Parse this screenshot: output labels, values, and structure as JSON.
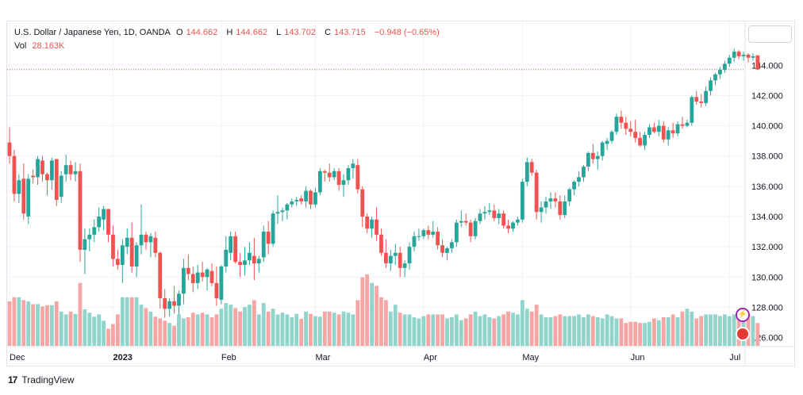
{
  "legend": {
    "symbol_name": "U.S. Dollar / Japanese Yen, 1D, OANDA",
    "o_label": "O",
    "o_value": "144.662",
    "h_label": "H",
    "h_value": "144.662",
    "l_label": "L",
    "l_value": "143.702",
    "c_label": "C",
    "c_value": "143.715",
    "change": "−0.948 (−0.65%)",
    "vol_label": "Vol",
    "vol_value": "28.163K"
  },
  "brand": {
    "name": "TradingView",
    "logo": "17"
  },
  "colors": {
    "up": "#26a69a",
    "down": "#ef5350",
    "vol_up": "#90d4cc",
    "vol_down": "#f5a5a3",
    "last_price_line": "#ef5350",
    "grid": "#f0f3fa",
    "axis_text": "#131722"
  },
  "icons": {
    "dividend": "dividend-event-icon",
    "flag": "us-flag-event-icon"
  },
  "chart_data": {
    "type": "candlestick",
    "title": "U.S. Dollar / Japanese Yen, 1D, OANDA",
    "ylim": [
      125.4,
      146.9
    ],
    "y_ticks": [
      "144.000",
      "142.000",
      "140.000",
      "138.000",
      "136.000",
      "134.000",
      "132.000",
      "130.000",
      "128.000",
      "126.000"
    ],
    "x_ticks": [
      {
        "label": "Dec",
        "index": 0
      },
      {
        "label": "2023",
        "index": 22
      },
      {
        "label": "Feb",
        "index": 45
      },
      {
        "label": "Mar",
        "index": 65
      },
      {
        "label": "Apr",
        "index": 88
      },
      {
        "label": "May",
        "index": 109
      },
      {
        "label": "Jun",
        "index": 132
      },
      {
        "label": "Jul",
        "index": 153
      }
    ],
    "last_price": 143.715,
    "grid": true,
    "candles": [
      [
        138.9,
        139.9,
        137.5,
        138.0,
        0.78
      ],
      [
        138.0,
        138.4,
        135.0,
        135.5,
        0.85
      ],
      [
        135.5,
        136.8,
        134.9,
        136.4,
        0.85
      ],
      [
        136.5,
        137.5,
        133.8,
        134.2,
        0.8
      ],
      [
        134.0,
        136.8,
        133.5,
        136.5,
        0.78
      ],
      [
        136.7,
        137.1,
        136.2,
        136.6,
        0.73
      ],
      [
        136.6,
        138.0,
        136.1,
        137.8,
        0.73
      ],
      [
        137.7,
        138.0,
        136.3,
        136.8,
        0.69
      ],
      [
        136.8,
        136.9,
        135.4,
        136.4,
        0.71
      ],
      [
        136.4,
        137.9,
        135.8,
        137.7,
        0.71
      ],
      [
        137.8,
        137.8,
        134.7,
        135.1,
        0.78
      ],
      [
        135.3,
        137.0,
        134.9,
        136.7,
        0.6
      ],
      [
        136.8,
        138.1,
        136.3,
        137.4,
        0.55
      ],
      [
        137.4,
        137.7,
        136.4,
        136.8,
        0.6
      ],
      [
        136.8,
        137.6,
        136.3,
        137.0,
        0.56
      ],
      [
        137.0,
        137.5,
        131.0,
        131.8,
        1.1
      ],
      [
        131.8,
        133.2,
        130.2,
        132.5,
        0.64
      ],
      [
        132.5,
        133.2,
        131.7,
        132.8,
        0.58
      ],
      [
        132.8,
        133.8,
        132.3,
        133.3,
        0.51
      ],
      [
        133.3,
        134.6,
        133.0,
        134.0,
        0.55
      ],
      [
        133.8,
        134.7,
        133.1,
        134.5,
        0.44
      ],
      [
        134.5,
        134.5,
        132.3,
        132.8,
        0.3
      ],
      [
        132.8,
        133.4,
        130.7,
        131.2,
        0.38
      ],
      [
        131.2,
        131.8,
        130.5,
        130.8,
        0.55
      ],
      [
        130.8,
        132.5,
        129.6,
        132.1,
        0.85
      ],
      [
        132.0,
        133.2,
        131.5,
        132.6,
        0.85
      ],
      [
        132.6,
        133.6,
        130.3,
        130.7,
        0.85
      ],
      [
        130.7,
        132.3,
        130.0,
        132.1,
        0.85
      ],
      [
        132.1,
        134.8,
        131.5,
        132.8,
        0.72
      ],
      [
        132.8,
        133.0,
        131.8,
        132.3,
        0.66
      ],
      [
        132.3,
        132.9,
        131.3,
        132.7,
        0.6
      ],
      [
        132.6,
        133.0,
        131.3,
        131.6,
        0.51
      ],
      [
        131.6,
        131.7,
        127.9,
        128.6,
        0.48
      ],
      [
        128.6,
        129.2,
        127.3,
        127.9,
        0.44
      ],
      [
        127.9,
        128.6,
        127.4,
        128.4,
        0.4
      ],
      [
        128.4,
        129.4,
        127.6,
        128.1,
        0.35
      ],
      [
        128.1,
        129.1,
        127.5,
        128.9,
        0.55
      ],
      [
        128.9,
        131.2,
        128.2,
        130.6,
        0.48
      ],
      [
        130.6,
        131.5,
        129.8,
        130.2,
        0.5
      ],
      [
        130.2,
        130.7,
        129.0,
        129.6,
        0.58
      ],
      [
        129.6,
        130.8,
        129.2,
        130.3,
        0.55
      ],
      [
        130.3,
        131.0,
        129.7,
        130.0,
        0.58
      ],
      [
        130.0,
        130.6,
        129.1,
        130.5,
        0.55
      ],
      [
        130.4,
        130.9,
        129.4,
        129.6,
        0.5
      ],
      [
        129.6,
        130.7,
        128.1,
        128.6,
        0.55
      ],
      [
        128.5,
        130.8,
        128.2,
        130.7,
        0.65
      ],
      [
        130.7,
        132.7,
        130.3,
        131.8,
        0.75
      ],
      [
        131.6,
        133.0,
        131.1,
        132.7,
        0.72
      ],
      [
        132.7,
        133.0,
        130.9,
        131.0,
        0.66
      ],
      [
        131.0,
        131.6,
        130.0,
        130.8,
        0.6
      ],
      [
        130.8,
        132.0,
        130.1,
        131.1,
        0.68
      ],
      [
        131.1,
        132.3,
        130.8,
        131.6,
        0.72
      ],
      [
        131.4,
        132.6,
        129.8,
        130.9,
        0.8
      ],
      [
        130.9,
        131.4,
        130.3,
        131.2,
        0.55
      ],
      [
        131.3,
        133.4,
        131.0,
        133.0,
        0.75
      ],
      [
        133.0,
        133.7,
        131.5,
        132.2,
        0.6
      ],
      [
        132.2,
        134.4,
        132.0,
        134.2,
        0.65
      ],
      [
        134.2,
        135.4,
        133.5,
        134.3,
        0.55
      ],
      [
        134.3,
        134.6,
        133.7,
        134.4,
        0.58
      ],
      [
        134.4,
        134.9,
        133.8,
        134.8,
        0.55
      ],
      [
        134.8,
        135.2,
        134.6,
        135.0,
        0.5
      ],
      [
        135.0,
        135.3,
        134.7,
        135.1,
        0.56
      ],
      [
        135.2,
        135.4,
        134.8,
        135.0,
        0.47
      ],
      [
        135.0,
        136.0,
        134.6,
        135.7,
        0.6
      ],
      [
        135.7,
        135.8,
        134.5,
        134.8,
        0.56
      ],
      [
        134.8,
        135.9,
        134.6,
        135.6,
        0.52
      ],
      [
        135.6,
        137.2,
        135.4,
        137.0,
        0.51
      ],
      [
        137.0,
        137.1,
        136.3,
        136.9,
        0.6
      ],
      [
        136.9,
        137.5,
        136.3,
        136.6,
        0.6
      ],
      [
        136.6,
        137.2,
        136.4,
        137.0,
        0.58
      ],
      [
        137.0,
        137.2,
        135.7,
        136.1,
        0.55
      ],
      [
        136.1,
        136.8,
        135.3,
        136.4,
        0.6
      ],
      [
        136.4,
        137.4,
        136.1,
        137.2,
        0.58
      ],
      [
        137.2,
        137.8,
        136.5,
        137.5,
        0.55
      ],
      [
        137.4,
        137.8,
        135.5,
        135.8,
        0.8
      ],
      [
        135.8,
        136.0,
        133.3,
        134.0,
        1.2
      ],
      [
        134.0,
        134.2,
        132.9,
        133.2,
        1.25
      ],
      [
        133.2,
        134.0,
        132.6,
        133.8,
        1.1
      ],
      [
        133.8,
        134.6,
        132.4,
        132.8,
        1.05
      ],
      [
        132.8,
        133.2,
        131.4,
        131.6,
        0.85
      ],
      [
        131.6,
        132.5,
        130.6,
        130.9,
        0.8
      ],
      [
        130.9,
        131.8,
        130.4,
        131.4,
        0.6
      ],
      [
        131.4,
        132.2,
        130.8,
        131.6,
        0.72
      ],
      [
        131.6,
        132.0,
        130.0,
        130.6,
        0.58
      ],
      [
        130.6,
        131.1,
        130.0,
        130.9,
        0.55
      ],
      [
        130.9,
        132.3,
        130.5,
        132.0,
        0.55
      ],
      [
        132.0,
        133.0,
        131.7,
        132.7,
        0.5
      ],
      [
        132.7,
        133.2,
        132.4,
        132.7,
        0.48
      ],
      [
        132.7,
        133.2,
        132.5,
        133.1,
        0.52
      ],
      [
        133.1,
        133.4,
        132.5,
        132.8,
        0.55
      ],
      [
        132.8,
        133.7,
        132.6,
        133.0,
        0.55
      ],
      [
        133.0,
        133.3,
        131.8,
        132.1,
        0.55
      ],
      [
        132.1,
        132.5,
        131.3,
        131.6,
        0.55
      ],
      [
        131.6,
        132.0,
        131.1,
        131.9,
        0.48
      ],
      [
        131.9,
        132.5,
        131.6,
        132.3,
        0.5
      ],
      [
        132.3,
        133.8,
        132.0,
        133.6,
        0.55
      ],
      [
        133.6,
        134.4,
        133.3,
        133.7,
        0.45
      ],
      [
        133.7,
        134.2,
        133.4,
        133.6,
        0.48
      ],
      [
        133.6,
        133.8,
        132.3,
        132.7,
        0.55
      ],
      [
        132.7,
        133.9,
        132.5,
        133.7,
        0.6
      ],
      [
        133.7,
        134.5,
        133.5,
        134.2,
        0.52
      ],
      [
        134.2,
        134.7,
        133.8,
        134.3,
        0.55
      ],
      [
        134.3,
        134.9,
        134.1,
        134.4,
        0.5
      ],
      [
        134.4,
        134.8,
        133.7,
        133.9,
        0.48
      ],
      [
        133.9,
        134.5,
        133.5,
        134.2,
        0.52
      ],
      [
        134.2,
        134.4,
        133.2,
        133.4,
        0.55
      ],
      [
        133.4,
        133.8,
        132.9,
        133.2,
        0.6
      ],
      [
        133.2,
        133.7,
        133.0,
        133.6,
        0.58
      ],
      [
        133.6,
        134.0,
        133.4,
        133.8,
        0.55
      ],
      [
        133.8,
        136.5,
        133.6,
        136.3,
        0.8
      ],
      [
        136.3,
        137.9,
        136.0,
        137.6,
        0.65
      ],
      [
        137.6,
        137.8,
        136.7,
        136.9,
        0.6
      ],
      [
        136.9,
        137.1,
        133.8,
        134.3,
        0.72
      ],
      [
        134.3,
        135.0,
        133.6,
        134.6,
        0.55
      ],
      [
        134.6,
        135.3,
        134.2,
        135.0,
        0.5
      ],
      [
        135.0,
        135.6,
        134.5,
        135.2,
        0.5
      ],
      [
        135.2,
        135.6,
        134.6,
        135.0,
        0.52
      ],
      [
        135.0,
        135.4,
        133.8,
        134.1,
        0.55
      ],
      [
        134.1,
        135.4,
        133.9,
        135.0,
        0.52
      ],
      [
        135.0,
        135.9,
        134.7,
        135.8,
        0.52
      ],
      [
        135.8,
        136.4,
        135.4,
        136.3,
        0.52
      ],
      [
        136.3,
        137.0,
        136.0,
        136.6,
        0.55
      ],
      [
        136.6,
        137.4,
        136.3,
        137.3,
        0.5
      ],
      [
        137.3,
        138.3,
        137.0,
        138.2,
        0.55
      ],
      [
        138.2,
        138.8,
        137.5,
        137.8,
        0.52
      ],
      [
        137.8,
        138.3,
        137.1,
        138.0,
        0.5
      ],
      [
        138.0,
        139.0,
        137.7,
        138.9,
        0.48
      ],
      [
        138.8,
        139.2,
        138.4,
        139.0,
        0.55
      ],
      [
        139.0,
        139.7,
        138.8,
        139.6,
        0.52
      ],
      [
        139.6,
        140.8,
        139.4,
        140.6,
        0.48
      ],
      [
        140.6,
        141.0,
        139.8,
        140.2,
        0.48
      ],
      [
        140.2,
        140.6,
        139.4,
        139.8,
        0.4
      ],
      [
        139.8,
        140.3,
        139.3,
        139.6,
        0.42
      ],
      [
        139.6,
        140.4,
        138.9,
        139.2,
        0.42
      ],
      [
        139.2,
        139.6,
        138.6,
        138.7,
        0.4
      ],
      [
        138.7,
        139.6,
        138.4,
        139.4,
        0.4
      ],
      [
        139.4,
        140.1,
        139.2,
        139.9,
        0.42
      ],
      [
        139.9,
        140.2,
        139.5,
        139.6,
        0.48
      ],
      [
        139.6,
        140.4,
        139.3,
        140.0,
        0.45
      ],
      [
        140.0,
        140.3,
        138.9,
        139.1,
        0.5
      ],
      [
        139.1,
        139.9,
        138.7,
        139.7,
        0.5
      ],
      [
        139.7,
        140.2,
        139.2,
        139.5,
        0.55
      ],
      [
        139.5,
        140.3,
        139.3,
        140.1,
        0.5
      ],
      [
        140.1,
        140.6,
        139.8,
        140.0,
        0.6
      ],
      [
        140.0,
        140.4,
        139.9,
        140.2,
        0.65
      ],
      [
        140.2,
        142.0,
        140.0,
        141.9,
        0.6
      ],
      [
        141.9,
        142.3,
        141.4,
        141.6,
        0.48
      ],
      [
        141.6,
        142.1,
        141.2,
        141.5,
        0.52
      ],
      [
        141.5,
        142.6,
        141.3,
        142.3,
        0.55
      ],
      [
        142.3,
        143.2,
        142.0,
        143.0,
        0.55
      ],
      [
        143.0,
        143.5,
        142.7,
        143.4,
        0.55
      ],
      [
        143.4,
        143.9,
        143.1,
        143.7,
        0.52
      ],
      [
        143.7,
        144.3,
        143.5,
        144.1,
        0.55
      ],
      [
        144.1,
        144.7,
        143.9,
        144.5,
        0.52
      ],
      [
        144.5,
        145.1,
        144.2,
        144.9,
        0.55
      ],
      [
        144.9,
        145.0,
        144.4,
        144.6,
        0.5
      ],
      [
        144.6,
        144.9,
        144.3,
        144.7,
        0.52
      ],
      [
        144.7,
        144.8,
        144.2,
        144.5,
        0.55
      ],
      [
        144.5,
        144.8,
        144.3,
        144.6,
        0.52
      ],
      [
        144.66,
        144.66,
        143.7,
        143.72,
        0.4
      ]
    ]
  }
}
